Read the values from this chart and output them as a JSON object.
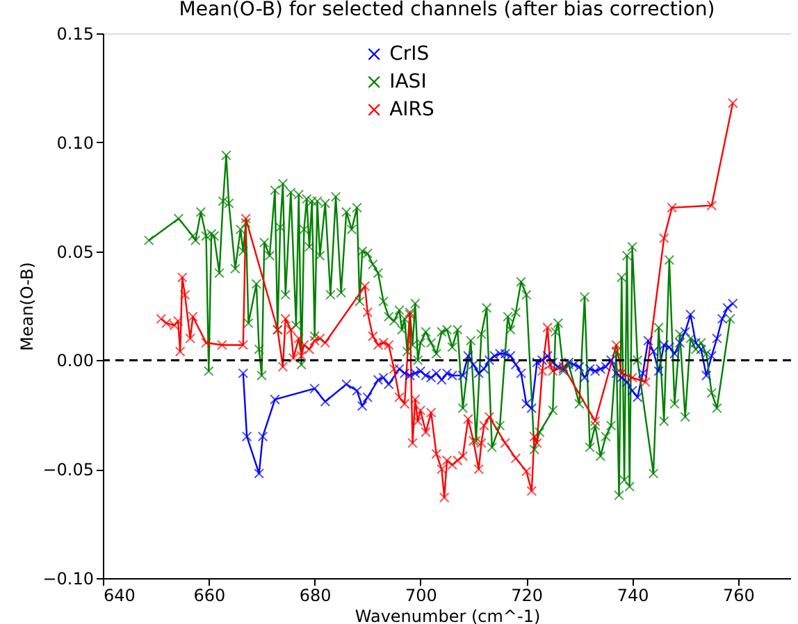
{
  "chart_data": {
    "type": "line",
    "title": "Mean(O-B) for selected channels (after bias correction)",
    "xlabel": "Wavenumber (cm^-1)",
    "ylabel": "Mean(O-B)",
    "xlim": [
      640,
      770
    ],
    "xticks": [
      640,
      660,
      680,
      700,
      720,
      740,
      760
    ],
    "ylim": [
      -0.1,
      0.15
    ],
    "yticks": [
      {
        "value": -0.1,
        "label": "−0.10"
      },
      {
        "value": -0.05,
        "label": "−0.05"
      },
      {
        "value": 0,
        "label": "0.00"
      },
      0.05,
      {
        "value": 0.1,
        "label": "0.10"
      },
      0.15
    ],
    "grid": false,
    "legend": "top",
    "marker": "cross",
    "line_style": "solid",
    "ref_lines": [
      {
        "axis": "y",
        "value": 0,
        "color": "#000000",
        "line_style": "dashed"
      }
    ],
    "series": [
      {
        "name": "CrIS",
        "color": "#0000ff",
        "x": [
          666.5,
          667.2,
          669.5,
          670.2,
          672.5,
          680,
          682,
          686,
          688,
          689,
          690,
          692,
          693,
          694,
          696,
          697,
          698,
          699,
          700,
          701,
          702,
          703,
          704,
          705,
          706,
          708,
          709,
          710,
          711,
          712,
          713,
          714,
          715,
          716,
          717,
          718,
          719,
          720,
          721,
          722,
          723,
          724,
          725,
          726,
          727,
          728,
          729,
          730,
          731,
          732,
          733,
          734,
          735,
          736,
          737,
          738,
          739,
          740,
          741,
          742,
          743,
          744,
          745,
          746,
          747,
          748,
          749,
          750,
          751,
          752,
          753,
          754,
          755,
          756,
          757,
          758,
          759
        ],
        "values": [
          -0.006,
          -0.035,
          -0.052,
          -0.035,
          -0.018,
          -0.013,
          -0.019,
          -0.011,
          -0.014,
          -0.021,
          -0.017,
          -0.009,
          -0.008,
          -0.011,
          -0.004,
          -0.006,
          -0.007,
          -0.006,
          -0.005,
          -0.007,
          -0.008,
          -0.006,
          -0.009,
          -0.006,
          -0.007,
          -0.007,
          0.002,
          -0.002,
          -0.006,
          -0.004,
          0.0,
          0.002,
          0.003,
          0.003,
          0.002,
          -0.002,
          -0.006,
          -0.02,
          -0.022,
          -0.001,
          0.0,
          0.002,
          -0.001,
          -0.003,
          -0.004,
          -0.001,
          -0.002,
          -0.003,
          -0.008,
          -0.004,
          -0.005,
          -0.004,
          -0.003,
          0.0,
          -0.006,
          -0.008,
          -0.01,
          -0.014,
          -0.017,
          -0.006,
          0.009,
          0.004,
          -0.005,
          0.007,
          0.006,
          0.003,
          0.008,
          0.013,
          0.021,
          0.008,
          0.005,
          -0.007,
          0.002,
          0.01,
          0.019,
          0.024,
          0.026
        ]
      },
      {
        "name": "IASI",
        "color": "#008000",
        "x": [
          648.7,
          654.3,
          657,
          657.5,
          658.5,
          659.5,
          660,
          660.5,
          661,
          662,
          662.7,
          663.3,
          663.8,
          665,
          666,
          666.5,
          667,
          667.5,
          669,
          669.5,
          670,
          670.5,
          671.5,
          672.5,
          673,
          673.5,
          674,
          674.5,
          675.5,
          676.5,
          677,
          677.5,
          678,
          678.5,
          679,
          679.5,
          680,
          680.5,
          681,
          682,
          683,
          684,
          685,
          686,
          687,
          688,
          688.5,
          689,
          690,
          691,
          692,
          693,
          694,
          695,
          696,
          696.5,
          697,
          697.5,
          698,
          698.5,
          699,
          699.5,
          700,
          701,
          702,
          703,
          704,
          705,
          706,
          707,
          708,
          709.5,
          710.5,
          711.5,
          712.5,
          713.5,
          715,
          716.5,
          717,
          718,
          719,
          720,
          721.5,
          722.5,
          725,
          725.5,
          726,
          727,
          728,
          730,
          731,
          732,
          733,
          734,
          735,
          736,
          737,
          737.5,
          738,
          738.5,
          739,
          739.5,
          740,
          741,
          744,
          745,
          746,
          747,
          748,
          749,
          750,
          751,
          752,
          753,
          754,
          755,
          756,
          758.5
        ],
        "values": [
          0.055,
          0.065,
          0.057,
          0.055,
          0.068,
          0.057,
          -0.005,
          0.058,
          0.057,
          0.04,
          0.073,
          0.094,
          0.072,
          0.042,
          0.06,
          0.05,
          0.063,
          0.017,
          0.035,
          0.005,
          -0.007,
          0.054,
          0.048,
          0.078,
          0.014,
          0.061,
          0.081,
          0.03,
          0.077,
          0.016,
          0.076,
          -0.002,
          0.06,
          0.074,
          0.052,
          0.073,
          0.011,
          0.073,
          0.048,
          0.072,
          0.03,
          0.075,
          0.031,
          0.068,
          0.06,
          0.07,
          0.027,
          0.05,
          0.049,
          0.044,
          0.04,
          0.027,
          0.02,
          0.018,
          0.023,
          0.014,
          0.019,
          0.004,
          0.022,
          0.007,
          0.026,
          0.0,
          0.008,
          0.013,
          0.008,
          0.003,
          0.013,
          0.014,
          0.006,
          0.014,
          -0.022,
          0.009,
          -0.037,
          0.012,
          0.024,
          -0.04,
          -0.03,
          0.02,
          0.014,
          0.022,
          0.036,
          0.03,
          -0.041,
          -0.033,
          -0.023,
          0.013,
          0.017,
          -0.005,
          -0.002,
          -0.02,
          0.029,
          -0.04,
          -0.03,
          -0.044,
          -0.035,
          -0.03,
          0.004,
          -0.062,
          0.038,
          -0.055,
          0.048,
          -0.058,
          0.052,
          0.0,
          -0.052,
          0.015,
          -0.028,
          0.046,
          -0.02,
          0.012,
          -0.026,
          0.01,
          0.005,
          0.008,
          0.003,
          -0.015,
          -0.022,
          0.019
        ]
      },
      {
        "name": "AIRS",
        "color": "#ff0000",
        "x": [
          651,
          652,
          653.5,
          654.2,
          654.6,
          655,
          655.5,
          656.5,
          657,
          659.5,
          662.5,
          666.5,
          667,
          673,
          674,
          674.5,
          675.5,
          676,
          677,
          677.5,
          678,
          679,
          680,
          681,
          682,
          689.5,
          690,
          691,
          692,
          693,
          694,
          695,
          696,
          697,
          698,
          698.5,
          699,
          699.5,
          700,
          701,
          702,
          703,
          704,
          704.5,
          705,
          706,
          707,
          708,
          709,
          710,
          711,
          711.5,
          712,
          713,
          716,
          718,
          720,
          721,
          721.5,
          722,
          723,
          724,
          724.5,
          725,
          727,
          733,
          737,
          738,
          740,
          742.5,
          746,
          747.5,
          755,
          759
        ],
        "values": [
          0.019,
          0.017,
          0.016,
          0.018,
          0.004,
          0.038,
          0.03,
          0.01,
          0.02,
          0.008,
          0.007,
          0.007,
          0.065,
          0.014,
          -0.003,
          0.019,
          0.014,
          0.001,
          0.01,
          0.002,
          0.007,
          0.005,
          0.009,
          0.01,
          0.008,
          0.034,
          0.022,
          0.011,
          0.007,
          0.008,
          0.007,
          -0.004,
          -0.017,
          -0.02,
          0.021,
          -0.038,
          -0.018,
          -0.028,
          -0.023,
          -0.033,
          -0.024,
          -0.043,
          -0.05,
          -0.063,
          -0.046,
          -0.048,
          -0.046,
          -0.044,
          -0.027,
          -0.037,
          -0.05,
          -0.038,
          -0.03,
          -0.026,
          -0.038,
          -0.045,
          -0.051,
          -0.06,
          -0.035,
          -0.038,
          -0.005,
          0.015,
          -0.002,
          -0.005,
          -0.003,
          -0.028,
          0.007,
          -0.006,
          -0.008,
          -0.01,
          0.056,
          0.07,
          0.071,
          0.118
        ]
      }
    ]
  }
}
